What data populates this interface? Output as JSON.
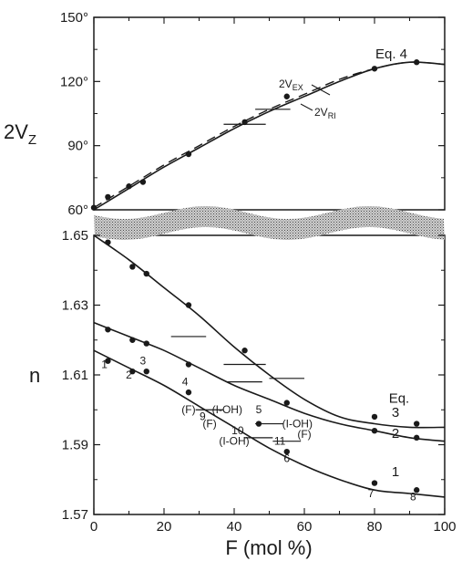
{
  "chart_data": [
    {
      "type": "line",
      "panel": "top",
      "ylabel": "2V",
      "ylabel_sub": "Z",
      "ylim": [
        60,
        150
      ],
      "xlim": [
        0,
        100
      ],
      "yticks": [
        "60°",
        "90°",
        "120°",
        "150°"
      ],
      "ytick_values": [
        60,
        90,
        120,
        150
      ],
      "series": [
        {
          "name": "2V_EX",
          "label": "2V",
          "label_sub": "EX",
          "style": "solid",
          "x": [
            0,
            10,
            20,
            30,
            40,
            50,
            60,
            70,
            80,
            90,
            100
          ],
          "y": [
            60,
            70,
            80,
            89,
            98,
            106,
            113,
            120,
            126,
            129,
            128
          ]
        },
        {
          "name": "2V_RI",
          "label": "2V",
          "label_sub": "RI",
          "style": "dashed",
          "x": [
            0,
            10,
            20,
            30,
            40,
            50,
            60,
            70,
            80,
            90,
            100
          ],
          "y": [
            61,
            71,
            81,
            90,
            99,
            107,
            114,
            121,
            126,
            129,
            128
          ]
        }
      ],
      "points": [
        {
          "x": 0,
          "y": 61
        },
        {
          "x": 4,
          "y": 66
        },
        {
          "x": 10,
          "y": 71
        },
        {
          "x": 14,
          "y": 73
        },
        {
          "x": 27,
          "y": 86
        },
        {
          "x": 43,
          "y": 101
        },
        {
          "x": 55,
          "y": 113
        },
        {
          "x": 80,
          "y": 126
        },
        {
          "x": 92,
          "y": 129
        }
      ],
      "errorbars_x": [
        {
          "x": 43,
          "y": 100,
          "xerr": 6
        },
        {
          "x": 51,
          "y": 107,
          "xerr": 5
        }
      ],
      "annotation": "Eq. 4"
    },
    {
      "type": "line",
      "panel": "bottom",
      "ylabel": "n",
      "xlabel": "F (mol %)",
      "ylim": [
        1.57,
        1.65
      ],
      "xlim": [
        0,
        100
      ],
      "xticks": [
        "0",
        "20",
        "40",
        "60",
        "80",
        "100"
      ],
      "yticks": [
        "1.57",
        "1.59",
        "1.61",
        "1.63",
        "1.65"
      ],
      "ytick_values": [
        1.57,
        1.59,
        1.61,
        1.63,
        1.65
      ],
      "series": [
        {
          "name": "Eq. 3",
          "x": [
            0,
            10,
            20,
            30,
            40,
            50,
            60,
            70,
            80,
            90,
            100
          ],
          "y": [
            1.65,
            1.643,
            1.635,
            1.627,
            1.618,
            1.61,
            1.603,
            1.598,
            1.596,
            1.595,
            1.595
          ]
        },
        {
          "name": "2",
          "x": [
            0,
            10,
            20,
            30,
            40,
            50,
            60,
            70,
            80,
            90,
            100
          ],
          "y": [
            1.625,
            1.621,
            1.617,
            1.612,
            1.607,
            1.603,
            1.599,
            1.596,
            1.594,
            1.592,
            1.591
          ]
        },
        {
          "name": "1",
          "x": [
            0,
            10,
            20,
            30,
            40,
            50,
            60,
            70,
            80,
            90,
            100
          ],
          "y": [
            1.617,
            1.612,
            1.607,
            1.601,
            1.595,
            1.589,
            1.584,
            1.58,
            1.577,
            1.576,
            1.575
          ]
        }
      ],
      "points": [
        {
          "x": 4,
          "y": 1.648
        },
        {
          "x": 11,
          "y": 1.641
        },
        {
          "x": 15,
          "y": 1.639
        },
        {
          "x": 27,
          "y": 1.63
        },
        {
          "x": 43,
          "y": 1.617
        },
        {
          "x": 80,
          "y": 1.598
        },
        {
          "x": 92,
          "y": 1.596
        },
        {
          "x": 4,
          "y": 1.623
        },
        {
          "x": 11,
          "y": 1.62
        },
        {
          "x": 15,
          "y": 1.619
        },
        {
          "x": 27,
          "y": 1.613
        },
        {
          "x": 55,
          "y": 1.602
        },
        {
          "x": 80,
          "y": 1.594
        },
        {
          "x": 92,
          "y": 1.592
        },
        {
          "x": 4,
          "y": 1.614
        },
        {
          "x": 11,
          "y": 1.611
        },
        {
          "x": 15,
          "y": 1.611
        },
        {
          "x": 27,
          "y": 1.605
        },
        {
          "x": 47,
          "y": 1.596
        },
        {
          "x": 55,
          "y": 1.588
        },
        {
          "x": 80,
          "y": 1.579
        },
        {
          "x": 92,
          "y": 1.577
        }
      ],
      "errorbars_x": [
        {
          "x": 27,
          "y": 1.621,
          "xerr": 5
        },
        {
          "x": 43,
          "y": 1.613,
          "xerr": 6
        },
        {
          "x": 55,
          "y": 1.609,
          "xerr": 5
        },
        {
          "x": 43,
          "y": 1.608,
          "xerr": 5
        },
        {
          "x": 33,
          "y": 1.6,
          "xerr": 4
        },
        {
          "x": 50,
          "y": 1.596,
          "xerr": 4
        },
        {
          "x": 47,
          "y": 1.592,
          "xerr": 4
        },
        {
          "x": 55,
          "y": 1.591,
          "xerr": 4
        }
      ],
      "annotations": [
        {
          "text": "1",
          "x": 3,
          "y": 1.612
        },
        {
          "text": "2",
          "x": 10,
          "y": 1.609
        },
        {
          "text": "3",
          "x": 14,
          "y": 1.613
        },
        {
          "text": "4",
          "x": 26,
          "y": 1.607
        },
        {
          "text": "(F)",
          "x": 27,
          "y": 1.599
        },
        {
          "text": "9",
          "x": 31,
          "y": 1.597
        },
        {
          "text": "(I-OH)",
          "x": 38,
          "y": 1.599
        },
        {
          "text": "5",
          "x": 47,
          "y": 1.599
        },
        {
          "text": "(F)",
          "x": 33,
          "y": 1.595
        },
        {
          "text": "10",
          "x": 41,
          "y": 1.593
        },
        {
          "text": "(I-OH)",
          "x": 58,
          "y": 1.595
        },
        {
          "text": "(I-OH)",
          "x": 40,
          "y": 1.59
        },
        {
          "text": "11",
          "x": 53,
          "y": 1.59
        },
        {
          "text": "(F)",
          "x": 60,
          "y": 1.592
        },
        {
          "text": "6",
          "x": 55,
          "y": 1.585
        },
        {
          "text": "7",
          "x": 79,
          "y": 1.575
        },
        {
          "text": "8",
          "x": 91,
          "y": 1.574
        },
        {
          "text": "Eq.",
          "x": 87,
          "y": 1.602
        },
        {
          "text": "3",
          "x": 86,
          "y": 1.598
        },
        {
          "text": "2",
          "x": 86,
          "y": 1.592
        },
        {
          "text": "1",
          "x": 86,
          "y": 1.581
        }
      ]
    }
  ]
}
